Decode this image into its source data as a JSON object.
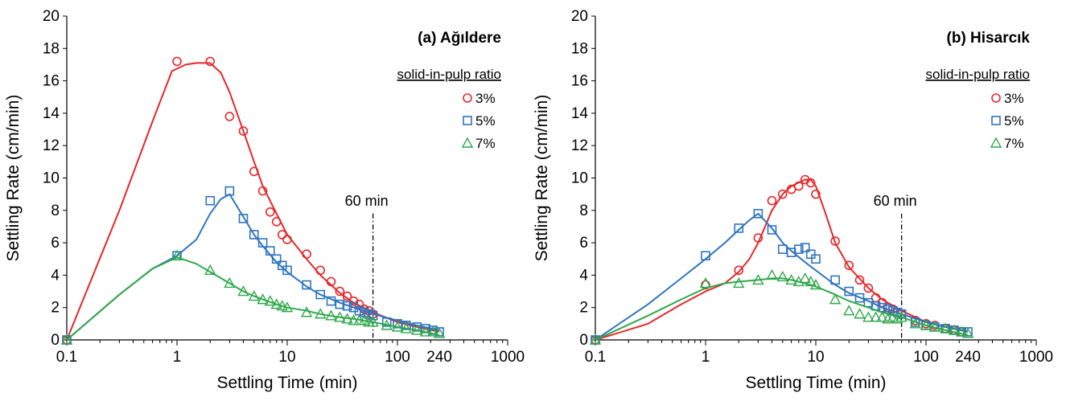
{
  "chart_data": [
    {
      "type": "scatter",
      "title": "(a) Ağıldere",
      "xlabel": "Settling Time (min)",
      "ylabel": "Settling Rate (cm/min)",
      "x_scale": "log",
      "xlim": [
        0.1,
        1000
      ],
      "ylim": [
        0,
        20
      ],
      "x_ticks": [
        0.1,
        1,
        10,
        100,
        240,
        1000
      ],
      "x_tick_labels": [
        "0.1",
        "1",
        "10",
        "100",
        "240",
        "1000"
      ],
      "y_ticks": [
        0,
        2,
        4,
        6,
        8,
        10,
        12,
        14,
        16,
        18,
        20
      ],
      "y_tick_labels": [
        "0",
        "2",
        "4",
        "6",
        "8",
        "10",
        "12",
        "14",
        "16",
        "18",
        "20"
      ],
      "grid": false,
      "legend_title": "solid-in-pulp  ratio",
      "legend_position": "top-right",
      "annotation": {
        "text": "60 min",
        "x": 60
      },
      "series": [
        {
          "name": "3%",
          "marker": "circle",
          "color": "#e8262a",
          "x": [
            0.1,
            1,
            2,
            3,
            4,
            5,
            6,
            7,
            8,
            9,
            10,
            15,
            20,
            25,
            30,
            35,
            40,
            45,
            50,
            55,
            60
          ],
          "y": [
            0,
            17.2,
            17.2,
            13.8,
            12.9,
            10.4,
            9.2,
            7.9,
            7.3,
            6.5,
            6.2,
            5.3,
            4.3,
            3.6,
            3.0,
            2.7,
            2.4,
            2.2,
            1.9,
            1.8,
            1.6
          ],
          "fit_x": [
            0.1,
            0.3,
            0.6,
            0.9,
            1.2,
            1.5,
            2,
            2.5,
            3,
            4,
            5,
            6,
            8,
            10,
            15,
            20,
            30,
            40,
            60,
            100,
            150,
            240
          ],
          "fit_y": [
            0,
            8.0,
            13.5,
            16.6,
            17.0,
            17.1,
            17.1,
            16.5,
            15.3,
            12.9,
            11.0,
            9.5,
            7.8,
            6.5,
            5.0,
            4.0,
            2.9,
            2.3,
            1.7,
            1.1,
            0.8,
            0.5
          ]
        },
        {
          "name": "5%",
          "marker": "square",
          "color": "#2e75c0",
          "x": [
            0.1,
            1,
            2,
            3,
            4,
            5,
            6,
            7,
            8,
            9,
            10,
            15,
            20,
            25,
            30,
            35,
            40,
            45,
            50,
            55,
            60,
            80,
            100,
            120,
            150,
            180,
            210,
            240
          ],
          "y": [
            0,
            5.2,
            8.6,
            9.2,
            7.5,
            6.5,
            6.0,
            5.5,
            5.0,
            4.6,
            4.3,
            3.4,
            2.8,
            2.4,
            2.2,
            2.1,
            2.0,
            1.8,
            1.7,
            1.6,
            1.5,
            1.1,
            1.0,
            0.9,
            0.8,
            0.7,
            0.6,
            0.5
          ],
          "fit_x": [
            0.1,
            0.3,
            0.6,
            1,
            1.5,
            2,
            2.5,
            3,
            4,
            5,
            6,
            8,
            10,
            15,
            20,
            30,
            40,
            60,
            100,
            150,
            240
          ],
          "fit_y": [
            0,
            2.8,
            4.4,
            5.2,
            6.2,
            7.8,
            8.7,
            9.0,
            7.6,
            6.5,
            5.8,
            4.8,
            4.2,
            3.3,
            2.8,
            2.3,
            2.0,
            1.6,
            1.2,
            0.9,
            0.6
          ]
        },
        {
          "name": "7%",
          "marker": "triangle",
          "color": "#2ea84a",
          "x": [
            0.1,
            1,
            2,
            3,
            4,
            5,
            6,
            7,
            8,
            9,
            10,
            15,
            20,
            25,
            30,
            35,
            40,
            45,
            50,
            55,
            60,
            80,
            100,
            120,
            150,
            180,
            210,
            240
          ],
          "y": [
            0,
            5.2,
            4.3,
            3.5,
            3.0,
            2.7,
            2.5,
            2.4,
            2.2,
            2.1,
            2.0,
            1.7,
            1.6,
            1.5,
            1.4,
            1.3,
            1.2,
            1.2,
            1.2,
            1.1,
            1.1,
            0.9,
            0.8,
            0.7,
            0.6,
            0.5,
            0.5,
            0.4
          ],
          "fit_x": [
            0.1,
            0.3,
            0.6,
            1,
            1.5,
            2,
            3,
            4,
            5,
            6,
            8,
            10,
            15,
            20,
            30,
            40,
            60,
            100,
            150,
            240
          ],
          "fit_y": [
            0,
            2.8,
            4.4,
            5.1,
            4.7,
            4.2,
            3.5,
            3.0,
            2.7,
            2.5,
            2.2,
            2.0,
            1.8,
            1.6,
            1.4,
            1.3,
            1.1,
            0.8,
            0.6,
            0.3
          ]
        }
      ]
    },
    {
      "type": "scatter",
      "title": "(b) Hisarcık",
      "xlabel": "Settling Time (min)",
      "ylabel": "Settling Rate (cm/min)",
      "x_scale": "log",
      "xlim": [
        0.1,
        1000
      ],
      "ylim": [
        0,
        20
      ],
      "x_ticks": [
        0.1,
        1,
        10,
        100,
        240,
        1000
      ],
      "x_tick_labels": [
        "0.1",
        "1",
        "10",
        "100",
        "240",
        "1000"
      ],
      "y_ticks": [
        0,
        2,
        4,
        6,
        8,
        10,
        12,
        14,
        16,
        18,
        20
      ],
      "y_tick_labels": [
        "0",
        "2",
        "4",
        "6",
        "8",
        "10",
        "12",
        "14",
        "16",
        "18",
        "20"
      ],
      "grid": false,
      "legend_title": "solid-in-pulp  ratio",
      "legend_position": "top-right",
      "annotation": {
        "text": "60 min",
        "x": 60
      },
      "series": [
        {
          "name": "3%",
          "marker": "circle",
          "color": "#e8262a",
          "x": [
            0.1,
            1,
            2,
            3,
            4,
            5,
            6,
            7,
            8,
            9,
            10,
            15,
            20,
            25,
            30,
            35,
            40,
            45,
            50,
            55,
            60,
            80,
            100,
            120,
            150,
            180,
            210
          ],
          "y": [
            0,
            3.4,
            4.3,
            6.3,
            8.6,
            9.0,
            9.3,
            9.5,
            9.9,
            9.7,
            9.0,
            6.1,
            4.6,
            3.7,
            3.2,
            2.6,
            2.3,
            2.0,
            1.9,
            1.7,
            1.6,
            1.2,
            1.0,
            0.9,
            0.7,
            0.6,
            0.5
          ],
          "fit_x": [
            0.1,
            0.3,
            0.6,
            1,
            1.5,
            2,
            2.5,
            3,
            4,
            5,
            6,
            8,
            9,
            10,
            12,
            15,
            20,
            30,
            40,
            60,
            100,
            150,
            240
          ],
          "fit_y": [
            0,
            1.0,
            2.2,
            3.0,
            3.5,
            4.2,
            5.0,
            6.0,
            8.0,
            9.0,
            9.5,
            9.9,
            9.9,
            9.5,
            8.0,
            6.0,
            4.5,
            3.2,
            2.5,
            1.8,
            1.1,
            0.8,
            0.5
          ]
        },
        {
          "name": "5%",
          "marker": "square",
          "color": "#2e75c0",
          "x": [
            0.1,
            1,
            2,
            3,
            4,
            5,
            6,
            7,
            8,
            9,
            10,
            15,
            20,
            25,
            30,
            35,
            40,
            45,
            50,
            55,
            60,
            80,
            100,
            120,
            150,
            180,
            210,
            240
          ],
          "y": [
            0,
            5.2,
            6.9,
            7.8,
            6.8,
            5.6,
            5.4,
            5.6,
            5.7,
            5.3,
            5.0,
            3.7,
            3.0,
            2.6,
            2.3,
            2.1,
            2.0,
            1.9,
            1.8,
            1.7,
            1.6,
            1.1,
            0.9,
            0.8,
            0.7,
            0.6,
            0.5,
            0.5
          ],
          "fit_x": [
            0.1,
            0.3,
            0.6,
            1,
            1.5,
            2,
            2.5,
            3,
            4,
            5,
            6,
            8,
            10,
            15,
            20,
            30,
            40,
            60,
            100,
            150,
            240
          ],
          "fit_y": [
            0,
            2.2,
            3.8,
            5.0,
            6.0,
            6.8,
            7.4,
            7.8,
            6.9,
            6.0,
            5.5,
            4.8,
            4.3,
            3.4,
            2.9,
            2.4,
            2.0,
            1.6,
            1.1,
            0.8,
            0.5
          ]
        },
        {
          "name": "7%",
          "marker": "triangle",
          "color": "#2ea84a",
          "x": [
            0.1,
            1,
            2,
            3,
            4,
            5,
            6,
            7,
            8,
            9,
            10,
            15,
            20,
            25,
            30,
            35,
            40,
            45,
            50,
            55,
            60,
            80,
            100,
            120,
            150,
            180,
            210,
            240
          ],
          "y": [
            0,
            3.5,
            3.5,
            3.7,
            4.0,
            3.9,
            3.7,
            3.6,
            3.8,
            3.6,
            3.4,
            2.5,
            1.8,
            1.6,
            1.4,
            1.4,
            1.4,
            1.3,
            1.4,
            1.3,
            1.4,
            1.0,
            0.9,
            0.8,
            0.7,
            0.6,
            0.5,
            0.4
          ],
          "fit_x": [
            0.1,
            0.3,
            0.6,
            1,
            1.5,
            2,
            3,
            4,
            5,
            6,
            8,
            10,
            15,
            20,
            30,
            40,
            60,
            100,
            150,
            240
          ],
          "fit_y": [
            0,
            1.5,
            2.5,
            3.2,
            3.5,
            3.6,
            3.7,
            3.8,
            3.8,
            3.7,
            3.5,
            3.3,
            2.8,
            2.4,
            2.0,
            1.7,
            1.4,
            0.9,
            0.6,
            0.3
          ]
        }
      ]
    }
  ]
}
